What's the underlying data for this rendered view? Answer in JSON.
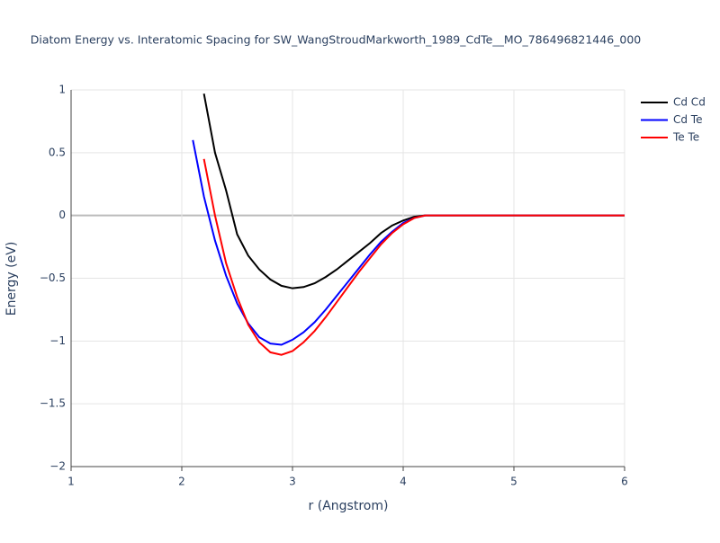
{
  "chart_data": {
    "type": "line",
    "title": "Diatom Energy vs. Interatomic Spacing for SW_WangStroudMarkworth_1989_CdTe__MO_786496821446_000",
    "x_label": "r (Angstrom)",
    "y_label": "Energy (eV)",
    "x": [
      2.0,
      2.1,
      2.2,
      2.3,
      2.4,
      2.5,
      2.6,
      2.7,
      2.8,
      2.9,
      3.0,
      3.1,
      3.2,
      3.3,
      3.4,
      3.5,
      3.6,
      3.7,
      3.8,
      3.9,
      4.0,
      4.1,
      4.2,
      5.0,
      6.0
    ],
    "series": [
      {
        "name": "Cd Cd",
        "color": "#000000",
        "values": [
          null,
          null,
          0.97,
          0.5,
          0.2,
          -0.15,
          -0.32,
          -0.43,
          -0.51,
          -0.56,
          -0.58,
          -0.57,
          -0.54,
          -0.49,
          -0.43,
          -0.36,
          -0.29,
          -0.22,
          -0.14,
          -0.08,
          -0.04,
          -0.01,
          0,
          0,
          0
        ]
      },
      {
        "name": "Cd Te",
        "color": "#0000ff",
        "values": [
          null,
          0.6,
          0.15,
          -0.2,
          -0.48,
          -0.7,
          -0.86,
          -0.97,
          -1.02,
          -1.03,
          -0.99,
          -0.93,
          -0.85,
          -0.75,
          -0.64,
          -0.53,
          -0.42,
          -0.31,
          -0.21,
          -0.13,
          -0.06,
          -0.02,
          0,
          0,
          0
        ]
      },
      {
        "name": "Te Te",
        "color": "#ff0000",
        "values": [
          null,
          null,
          0.45,
          0.0,
          -0.38,
          -0.65,
          -0.87,
          -1.01,
          -1.09,
          -1.11,
          -1.08,
          -1.01,
          -0.92,
          -0.81,
          -0.69,
          -0.57,
          -0.45,
          -0.34,
          -0.23,
          -0.14,
          -0.07,
          -0.02,
          0,
          0,
          0
        ]
      }
    ],
    "xlim": [
      1,
      6
    ],
    "xticks": [
      1,
      2,
      3,
      4,
      5,
      6
    ],
    "ylim": [
      -2,
      1
    ],
    "yticks": [
      {
        "value": -2,
        "label": "−2"
      },
      {
        "value": -1.5,
        "label": "−1.5"
      },
      {
        "value": -1,
        "label": "−1"
      },
      {
        "value": -0.5,
        "label": "−0.5"
      },
      0,
      0.5,
      1
    ],
    "grid": true,
    "legend": "top-right"
  }
}
